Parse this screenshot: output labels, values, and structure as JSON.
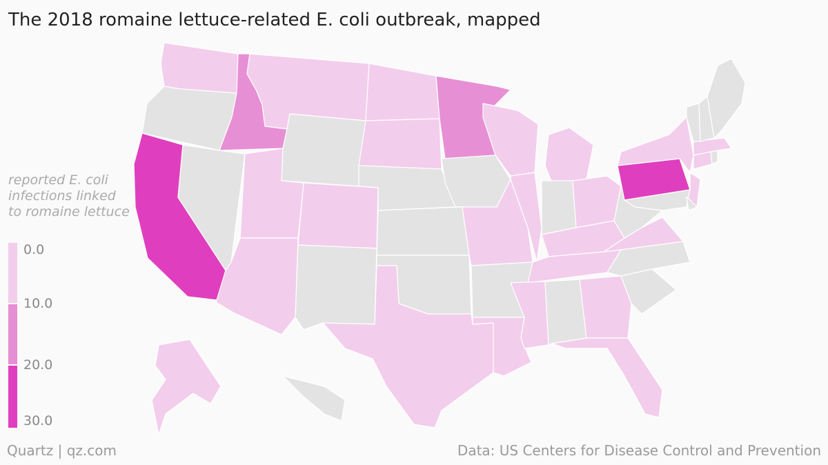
{
  "title": "The 2018 romaine lettuce-related E. coli outbreak, mapped",
  "legend": {
    "title": "reported E. coli infections linked to romaine lettuce",
    "ticks": [
      "0.0",
      "10.0",
      "20.0",
      "30.0"
    ],
    "bins": [
      {
        "range": "0–10",
        "color": "#f3cdec"
      },
      {
        "range": "10–20",
        "color": "#e78fd4"
      },
      {
        "range": "20–30",
        "color": "#df3fbe"
      }
    ],
    "no_data_color": "#e3e3e3"
  },
  "footer": {
    "source_left": "Quartz | qz.com",
    "source_right": "Data: US Centers for Disease Control and Prevention"
  },
  "map_data": {
    "type": "choropleth",
    "region": "United States",
    "states": [
      {
        "state": "WA",
        "bin": "0–10"
      },
      {
        "state": "OR",
        "bin": "no data"
      },
      {
        "state": "CA",
        "bin": "20–30"
      },
      {
        "state": "ID",
        "bin": "10–20"
      },
      {
        "state": "NV",
        "bin": "no data"
      },
      {
        "state": "MT",
        "bin": "0–10"
      },
      {
        "state": "WY",
        "bin": "no data"
      },
      {
        "state": "UT",
        "bin": "0–10"
      },
      {
        "state": "AZ",
        "bin": "0–10"
      },
      {
        "state": "CO",
        "bin": "0–10"
      },
      {
        "state": "NM",
        "bin": "no data"
      },
      {
        "state": "ND",
        "bin": "0–10"
      },
      {
        "state": "SD",
        "bin": "0–10"
      },
      {
        "state": "NE",
        "bin": "no data"
      },
      {
        "state": "KS",
        "bin": "no data"
      },
      {
        "state": "OK",
        "bin": "no data"
      },
      {
        "state": "TX",
        "bin": "0–10"
      },
      {
        "state": "MN",
        "bin": "10–20"
      },
      {
        "state": "IA",
        "bin": "no data"
      },
      {
        "state": "MO",
        "bin": "0–10"
      },
      {
        "state": "AR",
        "bin": "no data"
      },
      {
        "state": "LA",
        "bin": "0–10"
      },
      {
        "state": "WI",
        "bin": "0–10"
      },
      {
        "state": "IL",
        "bin": "0–10"
      },
      {
        "state": "MI",
        "bin": "0–10"
      },
      {
        "state": "IN",
        "bin": "no data"
      },
      {
        "state": "OH",
        "bin": "0–10"
      },
      {
        "state": "KY",
        "bin": "0–10"
      },
      {
        "state": "TN",
        "bin": "0–10"
      },
      {
        "state": "MS",
        "bin": "0–10"
      },
      {
        "state": "AL",
        "bin": "no data"
      },
      {
        "state": "GA",
        "bin": "0–10"
      },
      {
        "state": "FL",
        "bin": "0–10"
      },
      {
        "state": "SC",
        "bin": "no data"
      },
      {
        "state": "NC",
        "bin": "no data"
      },
      {
        "state": "VA",
        "bin": "0–10"
      },
      {
        "state": "WV",
        "bin": "no data"
      },
      {
        "state": "PA",
        "bin": "20–30"
      },
      {
        "state": "NY",
        "bin": "0–10"
      },
      {
        "state": "NJ",
        "bin": "0–10"
      },
      {
        "state": "MD",
        "bin": "no data"
      },
      {
        "state": "DE",
        "bin": "no data"
      },
      {
        "state": "CT",
        "bin": "0–10"
      },
      {
        "state": "RI",
        "bin": "no data"
      },
      {
        "state": "MA",
        "bin": "0–10"
      },
      {
        "state": "VT",
        "bin": "no data"
      },
      {
        "state": "NH",
        "bin": "no data"
      },
      {
        "state": "ME",
        "bin": "no data"
      },
      {
        "state": "AK",
        "bin": "0–10"
      },
      {
        "state": "HI",
        "bin": "no data"
      }
    ]
  }
}
